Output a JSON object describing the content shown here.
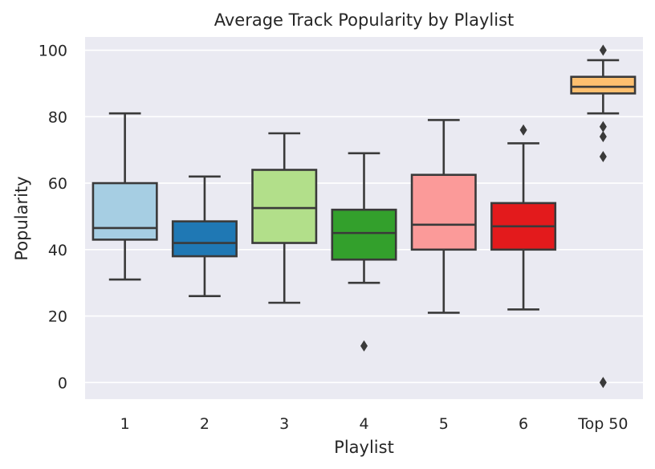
{
  "chart_data": {
    "type": "box",
    "title": "Average Track Popularity by Playlist",
    "xlabel": "Playlist",
    "ylabel": "Popularity",
    "ylim": [
      -5,
      104
    ],
    "yticks": [
      0,
      20,
      40,
      60,
      80,
      100
    ],
    "grid": true,
    "categories": [
      "1",
      "2",
      "3",
      "4",
      "5",
      "6",
      "Top 50"
    ],
    "boxes": [
      {
        "category": "1",
        "color": "#a6cee3",
        "whisker_low": 31,
        "q1": 43,
        "median": 46.5,
        "q3": 60,
        "whisker_high": 81,
        "outliers": []
      },
      {
        "category": "2",
        "color": "#1f78b4",
        "whisker_low": 26,
        "q1": 38,
        "median": 42,
        "q3": 48.5,
        "whisker_high": 62,
        "outliers": []
      },
      {
        "category": "3",
        "color": "#b2df8a",
        "whisker_low": 24,
        "q1": 42,
        "median": 52.5,
        "q3": 64,
        "whisker_high": 75,
        "outliers": []
      },
      {
        "category": "4",
        "color": "#33a02c",
        "whisker_low": 30,
        "q1": 37,
        "median": 45,
        "q3": 52,
        "whisker_high": 69,
        "outliers": [
          11
        ]
      },
      {
        "category": "5",
        "color": "#fb9a99",
        "whisker_low": 21,
        "q1": 40,
        "median": 47.5,
        "q3": 62.5,
        "whisker_high": 79,
        "outliers": []
      },
      {
        "category": "6",
        "color": "#e31a1c",
        "whisker_low": 22,
        "q1": 40,
        "median": 47,
        "q3": 54,
        "whisker_high": 72,
        "outliers": [
          76
        ]
      },
      {
        "category": "Top 50",
        "color": "#fdbf6f",
        "whisker_low": 81,
        "q1": 87,
        "median": 89,
        "q3": 92,
        "whisker_high": 97,
        "outliers": [
          100,
          77,
          74,
          68,
          0
        ]
      }
    ],
    "colors": {
      "plot_background": "#eaeaf2",
      "grid": "#ffffff",
      "line": "#3a3a3a",
      "text": "#262626"
    }
  }
}
